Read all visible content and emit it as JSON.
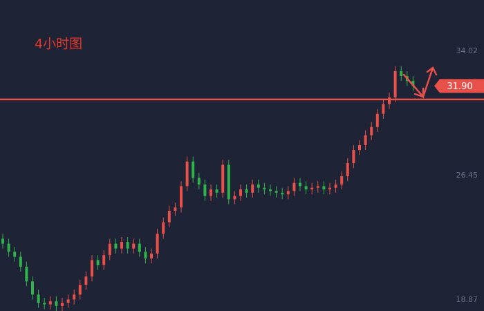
{
  "chart_data": {
    "type": "candlestick",
    "title": "4小时图",
    "open": [
      22.6,
      22.3,
      21.8,
      21.5,
      20.9,
      20.0,
      19.2,
      18.7,
      18.6,
      18.8,
      18.5,
      18.7,
      18.9,
      19.2,
      19.8,
      20.3,
      21.3,
      21.0,
      21.6,
      22.3,
      22.0,
      22.4,
      22.0,
      22.3,
      21.8,
      21.4,
      21.7,
      22.9,
      23.6,
      24.3,
      24.5,
      25.8,
      27.3,
      26.3,
      25.9,
      25.2,
      25.6,
      25.4,
      27.1,
      25.0,
      25.2,
      25.6,
      25.4,
      25.9,
      25.7,
      25.6,
      25.5,
      25.4,
      25.3,
      25.5,
      26.0,
      25.8,
      25.6,
      25.7,
      25.8,
      25.6,
      25.7,
      25.9,
      26.4,
      27.2,
      28.0,
      28.3,
      28.9,
      29.4,
      30.2,
      30.8,
      31.2,
      32.8,
      32.5,
      32.2
    ],
    "high": [
      22.9,
      22.6,
      22.1,
      21.8,
      21.2,
      20.3,
      19.5,
      19.0,
      19.1,
      19.1,
      19.0,
      19.2,
      19.5,
      20.1,
      20.6,
      21.6,
      21.6,
      21.9,
      22.6,
      22.6,
      22.7,
      22.7,
      22.6,
      22.6,
      22.1,
      22.0,
      23.2,
      23.9,
      24.6,
      24.8,
      26.1,
      27.6,
      27.6,
      26.6,
      26.2,
      25.9,
      25.9,
      27.4,
      27.4,
      25.5,
      25.9,
      25.9,
      26.2,
      26.2,
      26.0,
      25.9,
      25.8,
      25.7,
      25.8,
      26.3,
      26.3,
      26.1,
      26.0,
      26.1,
      26.1,
      26.0,
      26.2,
      26.7,
      27.5,
      28.3,
      28.6,
      29.2,
      29.7,
      30.5,
      31.1,
      31.5,
      33.1,
      33.1,
      32.8,
      32.5
    ],
    "low": [
      22.0,
      21.5,
      21.2,
      20.6,
      19.7,
      18.9,
      18.4,
      18.3,
      18.3,
      18.2,
      18.2,
      18.4,
      18.6,
      18.9,
      19.5,
      20.0,
      20.7,
      20.7,
      21.3,
      21.7,
      21.7,
      21.7,
      21.7,
      21.5,
      21.1,
      21.1,
      21.4,
      22.6,
      23.3,
      24.0,
      24.2,
      25.5,
      26.0,
      25.6,
      24.9,
      24.9,
      25.1,
      25.1,
      24.7,
      24.7,
      24.9,
      25.1,
      25.1,
      25.4,
      25.3,
      25.2,
      25.1,
      25.0,
      25.0,
      25.2,
      25.5,
      25.3,
      25.3,
      25.4,
      25.3,
      25.3,
      25.4,
      25.6,
      26.1,
      26.9,
      27.7,
      28.0,
      28.6,
      29.1,
      29.9,
      30.5,
      30.9,
      32.2,
      31.9,
      31.6
    ],
    "close": [
      22.3,
      21.8,
      21.5,
      20.9,
      20.0,
      19.2,
      18.7,
      18.6,
      18.8,
      18.5,
      18.7,
      18.9,
      19.2,
      19.8,
      20.3,
      21.3,
      21.0,
      21.6,
      22.3,
      22.0,
      22.4,
      22.0,
      22.3,
      21.8,
      21.4,
      21.7,
      22.9,
      23.6,
      24.3,
      24.5,
      25.8,
      27.3,
      26.3,
      25.9,
      25.2,
      25.6,
      25.4,
      27.1,
      25.0,
      25.2,
      25.6,
      25.4,
      25.9,
      25.7,
      25.6,
      25.5,
      25.4,
      25.3,
      25.5,
      26.0,
      25.8,
      25.6,
      25.7,
      25.8,
      25.6,
      25.7,
      25.9,
      26.4,
      27.2,
      28.0,
      28.3,
      28.9,
      29.4,
      30.2,
      30.8,
      31.2,
      32.8,
      32.5,
      32.2,
      31.9
    ],
    "up_color": "#e8504a",
    "down_color": "#2fb34c",
    "ylim": [
      18.2,
      37.13
    ],
    "yticks": [
      34.02,
      26.45,
      18.87
    ],
    "level_line": 31.08,
    "level_color": "#e8504a",
    "price_label": {
      "value": 31.9,
      "label": "31.90"
    }
  }
}
